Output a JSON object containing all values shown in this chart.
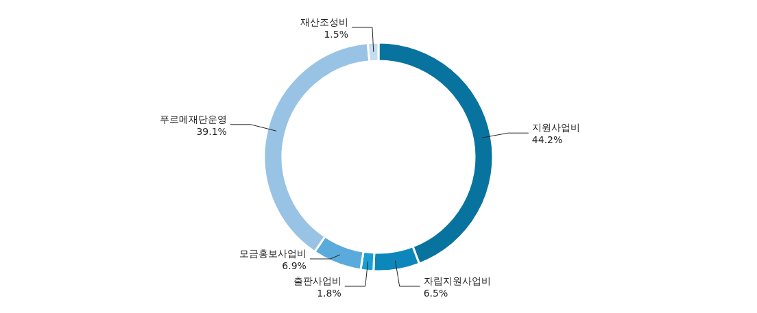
{
  "chart_data": {
    "type": "donut",
    "categories": [
      "지원사업비",
      "자립지원사업비",
      "출판사업비",
      "모금홍보사업비",
      "푸르메재단운영",
      "재산조성비"
    ],
    "values": [
      44.2,
      6.5,
      1.8,
      6.9,
      39.1,
      1.5
    ],
    "value_labels": [
      "44.2%",
      "6.5%",
      "1.8%",
      "6.9%",
      "39.1%",
      "1.5%"
    ],
    "colors": [
      "#09739f",
      "#0d87bb",
      "#1a9ed3",
      "#5aabdc",
      "#98c3e4",
      "#c5dcef"
    ]
  }
}
